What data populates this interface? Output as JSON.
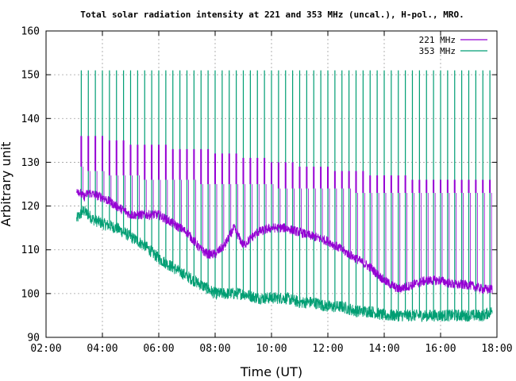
{
  "chart_data": {
    "type": "line",
    "title": "Total solar radiation intensity at 221 and 353 MHz (uncal.), H-pol., MRO.",
    "xlabel": "Time (UT)",
    "ylabel": "Arbitrary unit",
    "xlim": [
      "02:00",
      "18:00"
    ],
    "ylim": [
      90,
      160
    ],
    "xticks": [
      "02:00",
      "04:00",
      "06:00",
      "08:00",
      "10:00",
      "12:00",
      "14:00",
      "16:00",
      "18:00"
    ],
    "yticks": [
      "90",
      "100",
      "110",
      "120",
      "130",
      "140",
      "150",
      "160"
    ],
    "legend_position": "top-right",
    "grid": true,
    "series": [
      {
        "name": "221 MHz",
        "color": "#9400d3",
        "x": [
          "03:05",
          "03:20",
          "03:30",
          "04:00",
          "04:30",
          "05:00",
          "05:30",
          "06:00",
          "06:30",
          "07:00",
          "07:30",
          "07:45",
          "08:00",
          "08:20",
          "08:40",
          "09:00",
          "09:30",
          "10:00",
          "10:30",
          "11:00",
          "11:30",
          "12:00",
          "12:30",
          "13:00",
          "13:30",
          "14:00",
          "14:30",
          "15:00",
          "15:30",
          "16:00",
          "16:30",
          "17:00",
          "17:30",
          "17:50"
        ],
        "values": [
          124,
          122,
          123,
          122,
          120,
          118,
          118,
          118,
          116,
          114,
          110,
          109,
          109,
          111,
          115,
          111,
          114,
          115,
          115,
          114,
          113,
          112,
          110,
          108,
          106,
          103,
          101,
          102,
          103,
          103,
          102,
          102,
          101,
          101
        ],
        "spikes": {
          "interval_minutes": 15,
          "peak_values": [
            136,
            136,
            136,
            136,
            135,
            135,
            135,
            134,
            134,
            134,
            134,
            134,
            134,
            133,
            133,
            133,
            133,
            133,
            133,
            132,
            132,
            132,
            132,
            131,
            131,
            131,
            131,
            130,
            130,
            130,
            130,
            129,
            129,
            129,
            129,
            129,
            128,
            128,
            128,
            128,
            128,
            127,
            127,
            127,
            127,
            127,
            127,
            126,
            126,
            126,
            126,
            126,
            126,
            126,
            126,
            126,
            126,
            126,
            126,
            126
          ],
          "low_values": [
            129,
            128,
            128,
            128,
            127,
            127,
            127,
            127,
            127,
            126,
            126,
            126,
            126,
            126,
            126,
            126,
            126,
            125,
            125,
            125,
            125,
            125,
            125,
            125,
            125,
            125,
            125,
            125,
            124,
            124,
            124,
            124,
            124,
            124,
            124,
            124,
            124,
            124,
            124,
            123,
            123,
            123,
            123,
            123,
            123,
            123,
            123,
            123,
            123,
            123,
            123,
            123,
            123,
            123,
            123,
            123,
            123,
            123,
            123,
            123
          ]
        }
      },
      {
        "name": "353 MHz",
        "color": "#009e73",
        "x": [
          "03:05",
          "03:20",
          "03:40",
          "04:00",
          "04:30",
          "05:00",
          "05:30",
          "06:00",
          "06:30",
          "07:00",
          "07:30",
          "08:00",
          "08:30",
          "09:00",
          "09:30",
          "10:00",
          "10:30",
          "11:00",
          "11:30",
          "12:00",
          "12:30",
          "13:00",
          "13:30",
          "14:00",
          "14:30",
          "15:00",
          "15:30",
          "16:00",
          "16:30",
          "17:00",
          "17:30",
          "17:50"
        ],
        "values": [
          117,
          119,
          117,
          116,
          115,
          113,
          111,
          108,
          106,
          104,
          102,
          100,
          100,
          100,
          99,
          99,
          99,
          98,
          98,
          97,
          97,
          96,
          96,
          95,
          95,
          95,
          95,
          95,
          95,
          95,
          95,
          96
        ],
        "spikes": {
          "interval_minutes": 15,
          "peak_value": 151
        }
      }
    ]
  }
}
